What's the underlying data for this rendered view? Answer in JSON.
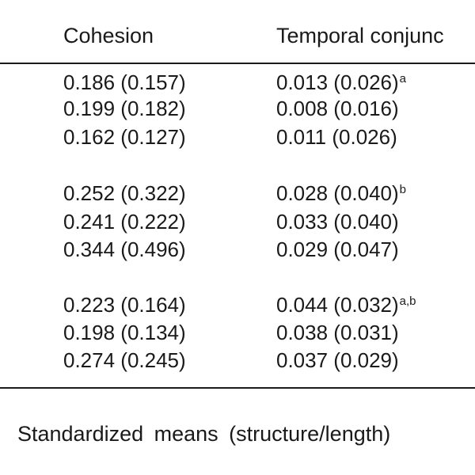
{
  "table": {
    "headers": {
      "cohesion": "Cohesion",
      "temporal": "Temporal conjunc"
    },
    "rows": [
      {
        "cohesion": "0.186 (0.157)",
        "temporal": "0.013 (0.026)",
        "temporal_sup": "a"
      },
      {
        "cohesion": "0.199 (0.182)",
        "temporal": "0.008 (0.016)",
        "temporal_sup": ""
      },
      {
        "cohesion": "0.162 (0.127)",
        "temporal": "0.011 (0.026)",
        "temporal_sup": ""
      },
      {
        "cohesion": "0.252 (0.322)",
        "temporal": "0.028 (0.040)",
        "temporal_sup": "b"
      },
      {
        "cohesion": "0.241 (0.222)",
        "temporal": "0.033 (0.040)",
        "temporal_sup": ""
      },
      {
        "cohesion": "0.344 (0.496)",
        "temporal": "0.029 (0.047)",
        "temporal_sup": ""
      },
      {
        "cohesion": "0.223 (0.164)",
        "temporal": "0.044 (0.032)",
        "temporal_sup": "a,b"
      },
      {
        "cohesion": "0.198 (0.134)",
        "temporal": "0.038 (0.031)",
        "temporal_sup": ""
      },
      {
        "cohesion": "0.274 (0.245)",
        "temporal": "0.037 (0.029)",
        "temporal_sup": ""
      }
    ]
  },
  "footer": {
    "text": "Standardized  means  (structure/length)"
  }
}
